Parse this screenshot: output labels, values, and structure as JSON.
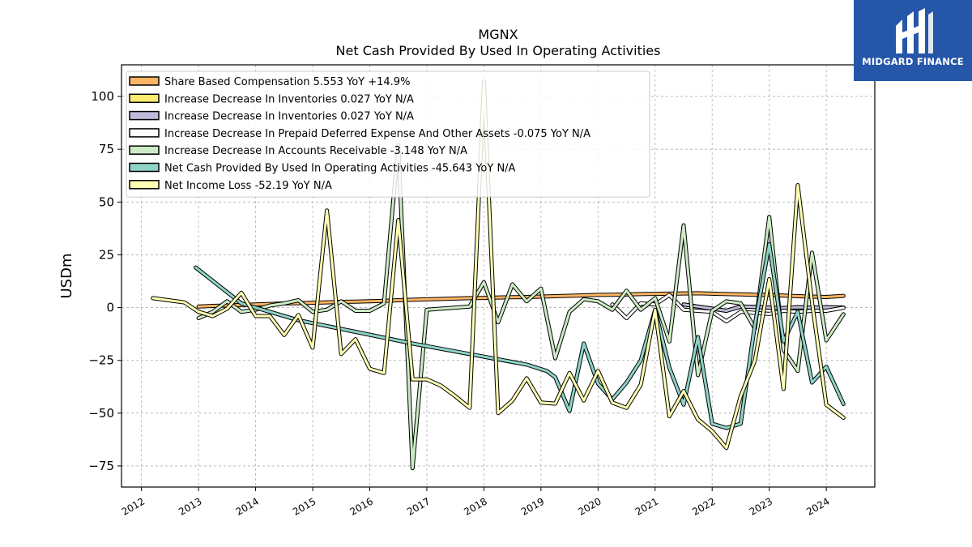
{
  "chart_data": {
    "type": "line",
    "title": "MGNX",
    "subtitle": "Net Cash Provided By Used In Operating Activities",
    "xlabel": "",
    "ylabel": "USDm",
    "ylim": [
      -85,
      115
    ],
    "xlim": [
      2011.65,
      2024.85
    ],
    "yticks": [
      -75,
      -50,
      -25,
      0,
      25,
      50,
      75,
      100
    ],
    "ytick_labels": [
      "−75",
      "−50",
      "−25",
      "0",
      "25",
      "50",
      "75",
      "100"
    ],
    "xticks": [
      2012,
      2013,
      2014,
      2015,
      2016,
      2017,
      2018,
      2019,
      2020,
      2021,
      2022,
      2023,
      2024
    ],
    "xtick_labels": [
      "2012",
      "2013",
      "2014",
      "2015",
      "2016",
      "2017",
      "2018",
      "2019",
      "2020",
      "2021",
      "2022",
      "2023",
      "2024"
    ],
    "grid": true,
    "legend_position": "top-left",
    "series": [
      {
        "name": "Share Based Compensation",
        "label": "Share Based Compensation  5.553 YoY +14.9%",
        "color": "#fdb462",
        "x": [
          2013.0,
          2013.25,
          2013.5,
          2013.75,
          2014.0,
          2014.25,
          2014.5,
          2014.75,
          2015.0,
          2015.25,
          2015.5,
          2015.75,
          2016.0,
          2016.25,
          2016.5,
          2016.75,
          2017.0,
          2017.25,
          2017.5,
          2017.75,
          2018.0,
          2018.25,
          2018.5,
          2018.75,
          2019.0,
          2019.25,
          2019.5,
          2019.75,
          2020.0,
          2020.25,
          2020.5,
          2020.75,
          2021.0,
          2021.25,
          2021.5,
          2021.75,
          2022.0,
          2022.25,
          2022.5,
          2022.75,
          2023.0,
          2023.25,
          2023.5,
          2023.75,
          2024.0,
          2024.3
        ],
        "y": [
          0.5,
          0.8,
          1.0,
          1.2,
          1.5,
          1.7,
          2.0,
          2.1,
          2.3,
          2.5,
          2.7,
          2.8,
          3.0,
          3.2,
          3.5,
          3.7,
          3.9,
          4.1,
          4.3,
          4.5,
          4.6,
          4.8,
          4.9,
          5.0,
          5.2,
          5.4,
          5.6,
          5.8,
          6.0,
          6.1,
          6.2,
          6.4,
          6.5,
          6.6,
          6.7,
          6.8,
          6.6,
          6.4,
          6.3,
          6.1,
          6.0,
          5.7,
          5.4,
          5.2,
          5.0,
          5.55
        ]
      },
      {
        "name": "Increase Decrease In Inventories",
        "label": "Increase Decrease In Inventories  0.027 YoY N/A",
        "color": "#ffed6f",
        "x": [
          2021.5,
          2021.75,
          2022.0,
          2022.25,
          2022.5,
          2022.75,
          2023.0,
          2023.25,
          2023.5,
          2023.75,
          2024.0,
          2024.3
        ],
        "y": [
          1.5,
          0.5,
          -0.5,
          -1.5,
          0.5,
          0.3,
          0.0,
          -0.2,
          0.2,
          0.0,
          0.1,
          0.03
        ]
      },
      {
        "name": "Increase Decrease In Inventories",
        "label": "Increase Decrease In Inventories  0.027 YoY N/A",
        "color": "#bebada",
        "x": [
          2021.5,
          2021.75,
          2022.0,
          2022.25,
          2022.5,
          2022.75,
          2023.0,
          2023.25,
          2023.5,
          2023.75,
          2024.0,
          2024.3
        ],
        "y": [
          1.5,
          0.5,
          -0.5,
          -1.5,
          0.5,
          0.3,
          0.0,
          -0.2,
          0.2,
          0.0,
          0.1,
          0.03
        ]
      },
      {
        "name": "Increase Decrease In Prepaid Deferred Expense And Other Assets",
        "label": "Increase Decrease In Prepaid Deferred Expense And Other Assets  -0.075 YoY N/A",
        "color": "#ffffff",
        "x": [
          2020.25,
          2020.5,
          2020.75,
          2021.0,
          2021.25,
          2021.5,
          2021.75,
          2022.0,
          2022.25,
          2022.5,
          2022.75,
          2023.0,
          2023.25,
          2023.5,
          2023.75,
          2024.0,
          2024.3
        ],
        "y": [
          1.5,
          -5.0,
          2.0,
          1.5,
          6.0,
          -1.0,
          -1.5,
          -2.0,
          -6.5,
          -2.0,
          -2.5,
          -3.0,
          -1.5,
          -2.0,
          -1.5,
          -1.5,
          -0.075
        ]
      },
      {
        "name": "Increase Decrease In Accounts Receivable",
        "label": "Increase Decrease In Accounts Receivable  -3.148 YoY N/A",
        "color": "#ccebc5",
        "x": [
          2013.0,
          2013.25,
          2013.5,
          2013.75,
          2014.0,
          2014.25,
          2014.5,
          2014.75,
          2015.0,
          2015.25,
          2015.5,
          2015.75,
          2016.0,
          2016.25,
          2016.5,
          2016.75,
          2017.0,
          2017.25,
          2017.5,
          2017.75,
          2018.0,
          2018.25,
          2018.5,
          2018.75,
          2019.0,
          2019.25,
          2019.5,
          2019.75,
          2020.0,
          2020.25,
          2020.5,
          2020.75,
          2021.0,
          2021.25,
          2021.5,
          2021.75,
          2022.0,
          2022.25,
          2022.5,
          2022.75,
          2023.0,
          2023.25,
          2023.5,
          2023.75,
          2024.0,
          2024.3
        ],
        "y": [
          -5.0,
          -2.0,
          3.0,
          -2.0,
          -1.0,
          1.0,
          2.0,
          3.5,
          -2.0,
          -1.0,
          3.0,
          -1.5,
          -1.5,
          2.0,
          77.0,
          -76.0,
          -1.0,
          -0.5,
          0.0,
          0.5,
          12.0,
          -7.0,
          11.0,
          3.0,
          9.0,
          -24.0,
          -2.0,
          4.0,
          3.0,
          -1.0,
          8.0,
          -1.0,
          4.5,
          -16.0,
          39.0,
          -32.0,
          -1.5,
          3.0,
          2.0,
          -10.0,
          43.0,
          -20.0,
          -30.0,
          26.0,
          -15.5,
          -3.148
        ]
      },
      {
        "name": "Net Cash Provided By Used In Operating Activities",
        "label": "Net Cash Provided By Used In Operating Activities  -45.643 YoY N/A",
        "color": "#8dd3c7",
        "x": [
          2012.95,
          2013.75,
          2014.75,
          2015.75,
          2016.75,
          2017.75,
          2018.75,
          2019.1,
          2019.25,
          2019.5,
          2019.75,
          2020.0,
          2020.25,
          2020.5,
          2020.75,
          2021.0,
          2021.25,
          2021.5,
          2021.75,
          2022.0,
          2022.25,
          2022.5,
          2022.75,
          2023.0,
          2023.25,
          2023.5,
          2023.75,
          2024.0,
          2024.3
        ],
        "y": [
          19.0,
          2.0,
          -6.0,
          -11.5,
          -17.0,
          -22.0,
          -27.0,
          -30.0,
          -33.0,
          -49.0,
          -17.0,
          -36.0,
          -43.5,
          -35.5,
          -25.0,
          -1.0,
          -28.5,
          -46.0,
          -14.0,
          -55.0,
          -57.0,
          -55.0,
          -8.0,
          30.0,
          -16.0,
          -2.0,
          -35.5,
          -28.0,
          -45.643
        ]
      },
      {
        "name": "Net Income Loss",
        "label": "Net Income Loss  -52.19 YoY N/A",
        "color": "#ffffb3",
        "x": [
          2012.2,
          2012.75,
          2013.0,
          2013.25,
          2013.5,
          2013.75,
          2014.0,
          2014.25,
          2014.5,
          2014.75,
          2015.0,
          2015.25,
          2015.5,
          2015.75,
          2016.0,
          2016.25,
          2016.5,
          2016.75,
          2017.0,
          2017.25,
          2017.5,
          2017.75,
          2018.0,
          2018.25,
          2018.5,
          2018.75,
          2019.0,
          2019.25,
          2019.5,
          2019.75,
          2020.0,
          2020.25,
          2020.5,
          2020.75,
          2021.0,
          2021.25,
          2021.5,
          2021.75,
          2022.0,
          2022.25,
          2022.5,
          2022.75,
          2023.0,
          2023.25,
          2023.5,
          2023.75,
          2024.0,
          2024.3
        ],
        "y": [
          4.5,
          2.5,
          -2.0,
          -4.0,
          -0.5,
          7.0,
          -4.0,
          -4.0,
          -13.0,
          -3.5,
          -19.0,
          46.0,
          -22.0,
          -15.0,
          -29.0,
          -31.0,
          41.5,
          -34.0,
          -34.0,
          -37.0,
          -42.0,
          -47.5,
          107.0,
          -50.0,
          -44.0,
          -33.5,
          -45.0,
          -45.5,
          -31.0,
          -44.0,
          -30.0,
          -45.0,
          -47.5,
          -36.5,
          -1.0,
          -51.5,
          -39.5,
          -53.0,
          -58.5,
          -66.5,
          -42.0,
          -25.0,
          13.5,
          -38.5,
          58.0,
          2.5,
          -46.0,
          -52.19
        ]
      }
    ]
  },
  "logo": {
    "brand_text": "MIDGARD FINANCE",
    "background_color": "#2556a8",
    "text_color": "#ffffff"
  }
}
